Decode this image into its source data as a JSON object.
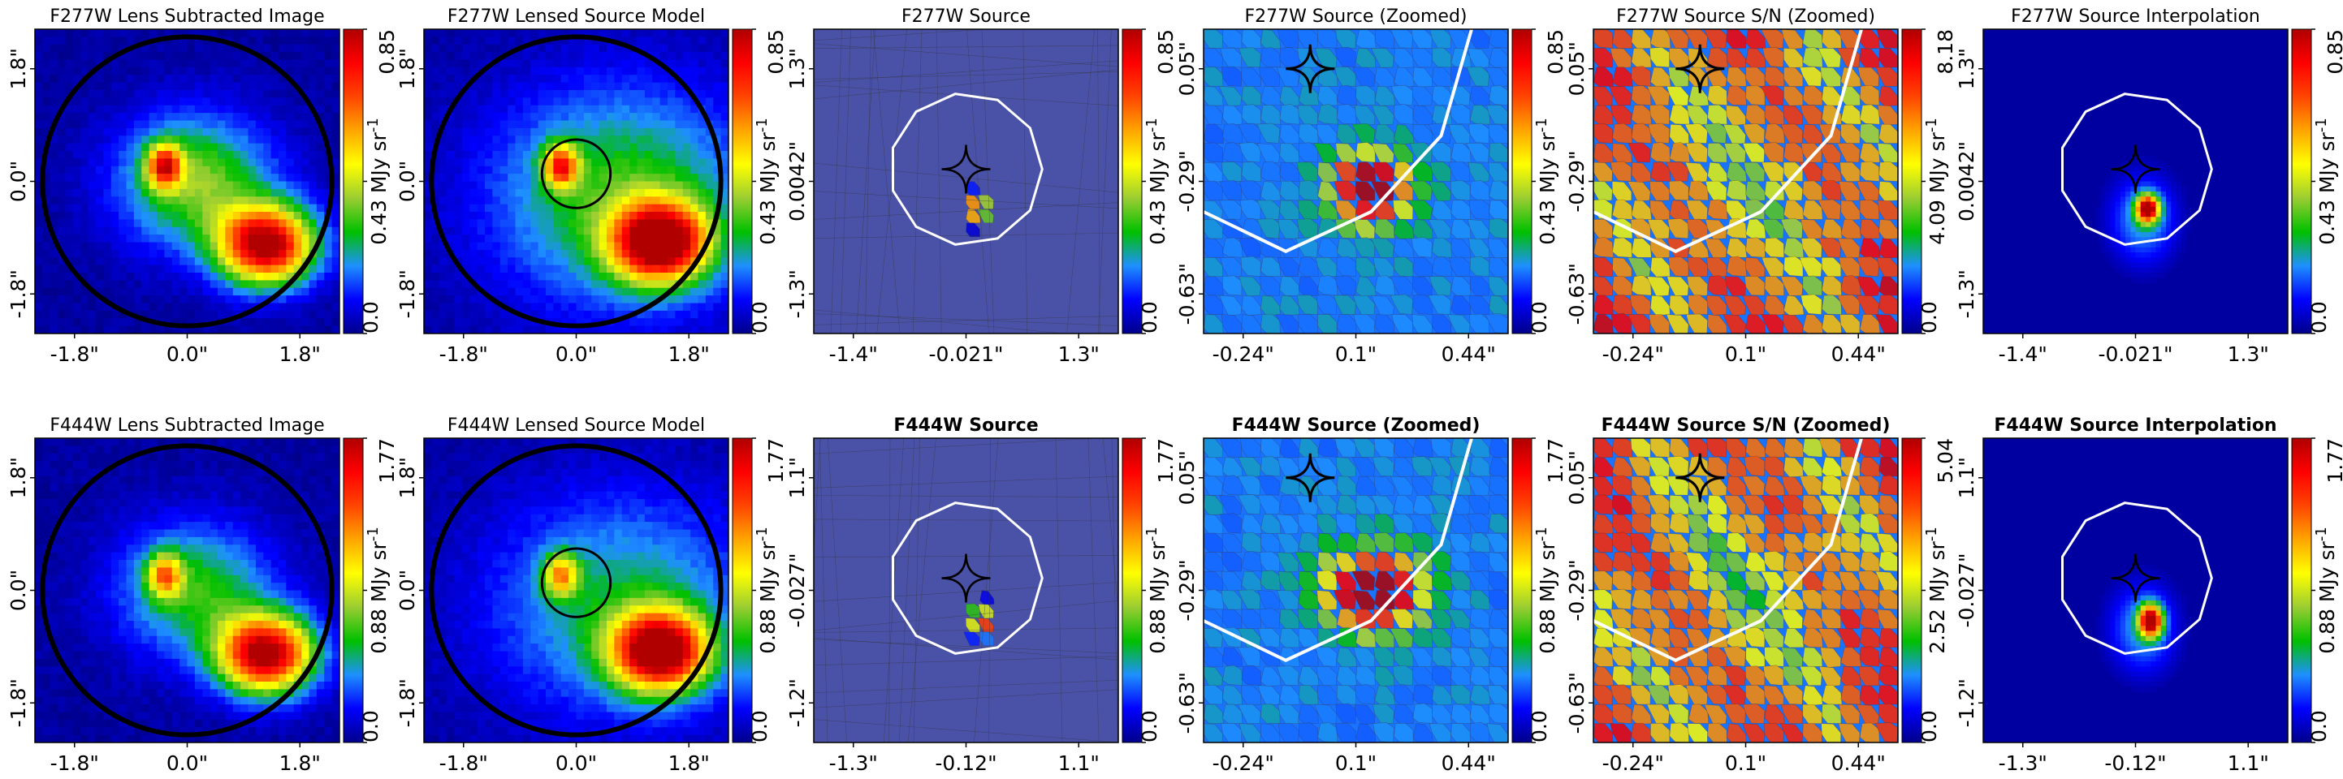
{
  "figure": {
    "colormap": [
      "#00008b",
      "#0000ff",
      "#1e90ff",
      "#00c000",
      "#9acd32",
      "#ffff00",
      "#ffa500",
      "#ff4500",
      "#ff0000",
      "#b00000"
    ],
    "frame_color": "#000000"
  },
  "chart_data": [
    {
      "type": "heatmap",
      "id": "r0c0",
      "row": 0,
      "col": 0,
      "kind": "image",
      "title": "F277W Lens Subtracted Image",
      "title_bold": false,
      "xticks": [
        "-1.8\"",
        "0.0\"",
        "1.8\""
      ],
      "yticks": [
        "-1.8\"",
        "0.0\"",
        "1.8\""
      ],
      "colorbar": {
        "ticks": [
          "0.0",
          "0.43 MJy sr$^{-1}$",
          "0.85"
        ],
        "label": "0.43",
        "unit": "MJy sr",
        "exp": "-1",
        "min": 0.0,
        "max": 0.85
      },
      "mask_circle": true,
      "blobs": [
        {
          "x": 0.52,
          "y": -0.42,
          "amp": 0.85,
          "sx": 0.22,
          "sy": 0.18
        },
        {
          "x": -0.15,
          "y": 0.1,
          "amp": 0.55,
          "sx": 0.08,
          "sy": 0.1
        },
        {
          "x": 0.05,
          "y": 0.0,
          "amp": 0.35,
          "sx": 0.35,
          "sy": 0.3
        }
      ]
    },
    {
      "type": "heatmap",
      "id": "r0c1",
      "row": 0,
      "col": 1,
      "kind": "image",
      "title": "F277W Lensed Source Model",
      "title_bold": false,
      "xticks": [
        "-1.8\"",
        "0.0\"",
        "1.8\""
      ],
      "yticks": [
        "-1.8\"",
        "0.0\"",
        "1.8\""
      ],
      "colorbar": {
        "ticks": [
          "0.0",
          "0.43",
          "0.85"
        ],
        "unit": "MJy sr",
        "exp": "-1",
        "min": 0.0,
        "max": 0.85
      },
      "mask_circle": true,
      "ring": {
        "x": 0.0,
        "y": 0.05,
        "r": 0.45
      },
      "blobs": [
        {
          "x": 0.55,
          "y": -0.4,
          "amp": 0.85,
          "sx": 0.22,
          "sy": 0.18
        },
        {
          "x": -0.1,
          "y": 0.1,
          "amp": 0.55,
          "sx": 0.08,
          "sy": 0.1
        },
        {
          "x": 0.3,
          "y": -0.1,
          "amp": 0.3,
          "sx": 0.6,
          "sy": 0.5
        }
      ]
    },
    {
      "type": "heatmap",
      "id": "r0c2",
      "row": 0,
      "col": 2,
      "kind": "voronoi",
      "title": "F277W Source",
      "title_bold": false,
      "xticks": [
        "-1.4\"",
        "-0.021\"",
        "1.3\""
      ],
      "yticks": [
        "-1.3\"",
        "0.0042\"",
        "1.3\""
      ],
      "colorbar": {
        "ticks": [
          "0.0",
          "0.43",
          "0.85"
        ],
        "unit": "MJy sr",
        "exp": "-1",
        "min": 0.0,
        "max": 0.85
      },
      "caustic_white": {
        "x": 0.0,
        "y": 0.0,
        "r": 0.25
      },
      "caustic_black": {
        "x": 0.0,
        "y": 0.0,
        "r": 0.05
      },
      "blobs": [
        {
          "x": 0.08,
          "y": -0.18,
          "amp": 0.85,
          "sx": 0.05,
          "sy": 0.06
        }
      ]
    },
    {
      "type": "heatmap",
      "id": "r0c3",
      "row": 0,
      "col": 3,
      "kind": "voronoi_zoom",
      "title": "F277W Source (Zoomed)",
      "title_bold": false,
      "xticks": [
        "-0.24\"",
        "0.1\"",
        "0.44\""
      ],
      "yticks": [
        "-0.63\"",
        "-0.29\"",
        "0.05\""
      ],
      "colorbar": {
        "ticks": [
          "0.0",
          "0.43",
          "0.85"
        ],
        "unit": "MJy sr",
        "exp": "-1",
        "min": 0.0,
        "max": 0.85
      },
      "blobs": [
        {
          "x": 0.1,
          "y": -0.05,
          "amp": 0.85,
          "sx": 0.18,
          "sy": 0.16
        }
      ]
    },
    {
      "type": "heatmap",
      "id": "r0c4",
      "row": 0,
      "col": 4,
      "kind": "voronoi_sn",
      "title": "F277W Source S/N (Zoomed)",
      "title_bold": false,
      "xticks": [
        "-0.24\"",
        "0.1\"",
        "0.44\""
      ],
      "yticks": [
        "-0.63\"",
        "-0.29\"",
        "0.05\""
      ],
      "colorbar": {
        "ticks": [
          "0.0",
          "4.09",
          "8.18"
        ],
        "unit": "MJy sr",
        "exp": "-1",
        "min": 0.0,
        "max": 8.18
      }
    },
    {
      "type": "heatmap",
      "id": "r0c5",
      "row": 0,
      "col": 5,
      "kind": "interp",
      "title": "F277W Source Interpolation",
      "title_bold": false,
      "xticks": [
        "-1.4\"",
        "-0.021\"",
        "1.3\""
      ],
      "yticks": [
        "-1.3\"",
        "0.0042\"",
        "1.3\""
      ],
      "colorbar": {
        "ticks": [
          "0.0",
          "0.43",
          "0.85"
        ],
        "unit": "MJy sr",
        "exp": "-1",
        "min": 0.0,
        "max": 0.85
      },
      "caustic_white": {
        "x": 0.0,
        "y": 0.0,
        "r": 0.25
      },
      "caustic_black": {
        "x": 0.0,
        "y": 0.0,
        "r": 0.05
      },
      "blobs": [
        {
          "x": 0.08,
          "y": -0.18,
          "amp": 0.85,
          "sx": 0.05,
          "sy": 0.06
        }
      ]
    },
    {
      "type": "heatmap",
      "id": "r1c0",
      "row": 1,
      "col": 0,
      "kind": "image",
      "title": "F444W Lens Subtracted Image",
      "title_bold": false,
      "xticks": [
        "-1.8\"",
        "0.0\"",
        "1.8\""
      ],
      "yticks": [
        "-1.8\"",
        "0.0\"",
        "1.8\""
      ],
      "colorbar": {
        "ticks": [
          "0.0",
          "0.88",
          "1.77"
        ],
        "unit": "MJy sr",
        "exp": "-1",
        "min": 0.0,
        "max": 1.77
      },
      "mask_circle": true,
      "blobs": [
        {
          "x": 0.52,
          "y": -0.42,
          "amp": 1.77,
          "sx": 0.22,
          "sy": 0.18
        },
        {
          "x": -0.15,
          "y": 0.1,
          "amp": 0.9,
          "sx": 0.08,
          "sy": 0.1
        },
        {
          "x": 0.05,
          "y": 0.0,
          "amp": 0.6,
          "sx": 0.35,
          "sy": 0.3
        }
      ]
    },
    {
      "type": "heatmap",
      "id": "r1c1",
      "row": 1,
      "col": 1,
      "kind": "image",
      "title": "F444W Lensed Source Model",
      "title_bold": false,
      "xticks": [
        "-1.8\"",
        "0.0\"",
        "1.8\""
      ],
      "yticks": [
        "-1.8\"",
        "0.0\"",
        "1.8\""
      ],
      "colorbar": {
        "ticks": [
          "0.0",
          "0.88",
          "1.77"
        ],
        "unit": "MJy sr",
        "exp": "-1",
        "min": 0.0,
        "max": 1.77
      },
      "mask_circle": true,
      "ring": {
        "x": 0.0,
        "y": 0.05,
        "r": 0.45
      },
      "blobs": [
        {
          "x": 0.55,
          "y": -0.4,
          "amp": 1.77,
          "sx": 0.22,
          "sy": 0.18
        },
        {
          "x": -0.1,
          "y": 0.1,
          "amp": 0.9,
          "sx": 0.08,
          "sy": 0.1
        },
        {
          "x": 0.3,
          "y": -0.1,
          "amp": 0.5,
          "sx": 0.6,
          "sy": 0.5
        }
      ]
    },
    {
      "type": "heatmap",
      "id": "r1c2",
      "row": 1,
      "col": 2,
      "kind": "voronoi",
      "title": "F444W Source",
      "title_bold": true,
      "xticks": [
        "-1.3\"",
        "-0.12\"",
        "1.1\""
      ],
      "yticks": [
        "-1.2\"",
        "-0.027\"",
        "1.1\""
      ],
      "colorbar": {
        "ticks": [
          "0.0",
          "0.88",
          "1.77"
        ],
        "unit": "MJy sr",
        "exp": "-1",
        "min": 0.0,
        "max": 1.77
      },
      "caustic_white": {
        "x": 0.0,
        "y": 0.0,
        "r": 0.25
      },
      "caustic_black": {
        "x": 0.0,
        "y": 0.0,
        "r": 0.05
      },
      "blobs": [
        {
          "x": 0.1,
          "y": -0.2,
          "amp": 1.77,
          "sx": 0.05,
          "sy": 0.07
        }
      ]
    },
    {
      "type": "heatmap",
      "id": "r1c3",
      "row": 1,
      "col": 3,
      "kind": "voronoi_zoom",
      "title": "F444W Source (Zoomed)",
      "title_bold": true,
      "xticks": [
        "-0.24\"",
        "0.1\"",
        "0.44\""
      ],
      "yticks": [
        "-0.63\"",
        "-0.29\"",
        "0.05\""
      ],
      "colorbar": {
        "ticks": [
          "0.0",
          "0.88",
          "1.77"
        ],
        "unit": "MJy sr",
        "exp": "-1",
        "min": 0.0,
        "max": 1.77
      },
      "blobs": [
        {
          "x": 0.12,
          "y": 0.0,
          "amp": 1.77,
          "sx": 0.22,
          "sy": 0.18
        }
      ]
    },
    {
      "type": "heatmap",
      "id": "r1c4",
      "row": 1,
      "col": 4,
      "kind": "voronoi_sn",
      "title": "F444W Source S/N (Zoomed)",
      "title_bold": true,
      "xticks": [
        "-0.24\"",
        "0.1\"",
        "0.44\""
      ],
      "yticks": [
        "-0.63\"",
        "-0.29\"",
        "0.05\""
      ],
      "colorbar": {
        "ticks": [
          "0.0",
          "2.52",
          "5.04"
        ],
        "unit": "MJy sr",
        "exp": "-1",
        "min": 0.0,
        "max": 5.04
      }
    },
    {
      "type": "heatmap",
      "id": "r1c5",
      "row": 1,
      "col": 5,
      "kind": "interp",
      "title": "F444W Source Interpolation",
      "title_bold": true,
      "xticks": [
        "-1.3\"",
        "-0.12\"",
        "1.1\""
      ],
      "yticks": [
        "-1.2\"",
        "-0.027\"",
        "1.1\""
      ],
      "colorbar": {
        "ticks": [
          "0.0",
          "0.88",
          "1.77"
        ],
        "unit": "MJy sr",
        "exp": "-1",
        "min": 0.0,
        "max": 1.77
      },
      "caustic_white": {
        "x": 0.0,
        "y": 0.0,
        "r": 0.25
      },
      "caustic_black": {
        "x": 0.0,
        "y": 0.0,
        "r": 0.05
      },
      "blobs": [
        {
          "x": 0.1,
          "y": -0.2,
          "amp": 1.77,
          "sx": 0.05,
          "sy": 0.07
        }
      ]
    }
  ]
}
